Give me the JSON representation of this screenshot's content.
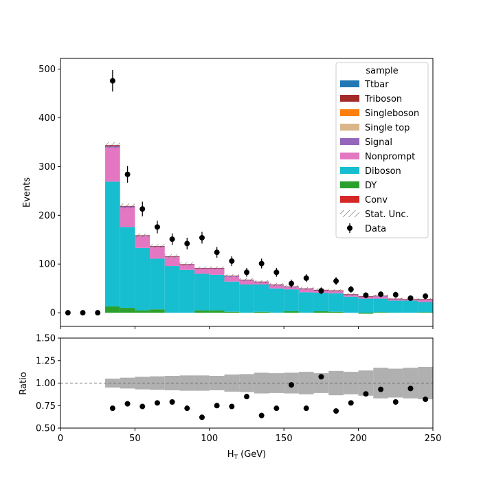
{
  "chart_data": [
    {
      "type": "bar",
      "stacked": true,
      "ylabel": "Events",
      "xlim": [
        0,
        250
      ],
      "ylim": [
        -28,
        522
      ],
      "yticks": [
        0,
        100,
        200,
        300,
        400,
        500
      ],
      "xticks": [
        0,
        50,
        100,
        150,
        200,
        250
      ],
      "grid": false,
      "legend_position": "top-right",
      "legend_title": "sample",
      "bin_edges": [
        0,
        10,
        20,
        30,
        40,
        50,
        60,
        70,
        80,
        90,
        100,
        110,
        120,
        130,
        140,
        150,
        160,
        170,
        180,
        190,
        200,
        210,
        220,
        230,
        240,
        250
      ],
      "series": [
        {
          "name": "Conv",
          "color": "#d62728",
          "values": [
            0,
            0,
            0,
            0,
            0,
            0,
            0,
            0,
            0,
            0,
            0,
            0,
            0,
            0,
            0,
            0,
            0,
            0,
            0,
            0,
            0,
            0,
            0,
            0,
            0
          ]
        },
        {
          "name": "DY",
          "color": "#2ca02c",
          "values": [
            0,
            0,
            0,
            13,
            10,
            5,
            7,
            0,
            0,
            5,
            5,
            2,
            0,
            2,
            0,
            3,
            0,
            3,
            2,
            0,
            -2,
            1,
            0,
            0,
            1
          ]
        },
        {
          "name": "Diboson",
          "color": "#17becf",
          "values": [
            0,
            0,
            0,
            256,
            166,
            128,
            104,
            96,
            88,
            75,
            73,
            62,
            58,
            56,
            50,
            45,
            42,
            38,
            38,
            33,
            29,
            28,
            25,
            25,
            21
          ]
        },
        {
          "name": "Nonprompt",
          "color": "#e377c2",
          "values": [
            0,
            0,
            0,
            70,
            40,
            24,
            24,
            18,
            10,
            10,
            12,
            10,
            8,
            4,
            6,
            4,
            6,
            4,
            4,
            3,
            3,
            4,
            2,
            2,
            4
          ]
        },
        {
          "name": "Signal",
          "color": "#9467bd",
          "values": [
            0,
            0,
            0,
            3,
            2,
            1,
            1,
            1,
            1,
            1,
            1,
            1,
            1,
            1,
            1,
            1,
            1,
            1,
            1,
            1,
            1,
            1,
            1,
            0,
            1
          ]
        },
        {
          "name": "Single top",
          "color": "#dbb68a",
          "values": [
            0,
            0,
            0,
            0,
            0,
            0,
            0,
            0,
            0,
            0,
            0,
            0,
            0,
            0,
            0,
            0,
            0,
            0,
            0,
            0,
            0,
            0,
            0,
            0,
            0
          ]
        },
        {
          "name": "Singleboson",
          "color": "#ff7f0e",
          "values": [
            0,
            0,
            0,
            0,
            0,
            0,
            0,
            0,
            0,
            0,
            0,
            0,
            0,
            0,
            0,
            0,
            0,
            0,
            0,
            0,
            0,
            0,
            0,
            0,
            0
          ]
        },
        {
          "name": "Triboson",
          "color": "#a52a2a",
          "values": [
            0,
            0,
            0,
            2,
            1,
            1,
            1,
            1,
            1,
            1,
            1,
            1,
            1,
            1,
            1,
            1,
            1,
            1,
            1,
            1,
            1,
            1,
            1,
            1,
            1
          ]
        },
        {
          "name": "Ttbar",
          "color": "#1f77b4",
          "values": [
            0,
            0,
            0,
            0,
            0,
            0,
            0,
            0,
            0,
            0,
            0,
            0,
            0,
            0,
            0,
            0,
            0,
            0,
            0,
            0,
            0,
            0,
            0,
            0,
            0
          ]
        }
      ],
      "stat_unc": [
        0,
        0,
        0,
        6,
        5,
        4,
        4,
        4,
        4,
        3,
        3,
        3,
        3,
        3,
        3,
        3,
        3,
        3,
        3,
        3,
        2,
        2,
        2,
        2,
        2
      ],
      "stat_unc_label": "Stat. Unc.",
      "data": {
        "name": "Data",
        "x": [
          5,
          15,
          25,
          35,
          45,
          55,
          65,
          75,
          85,
          95,
          105,
          115,
          125,
          135,
          145,
          155,
          165,
          175,
          185,
          195,
          205,
          215,
          225,
          235,
          245
        ],
        "y": [
          0,
          0,
          0,
          476,
          284,
          213,
          176,
          151,
          142,
          154,
          124,
          106,
          83,
          101,
          83,
          60,
          71,
          45,
          65,
          48,
          36,
          38,
          37,
          30,
          34
        ],
        "err": [
          0,
          0,
          0,
          22,
          17,
          15,
          13,
          12,
          12,
          12,
          11,
          10,
          9,
          10,
          9,
          8,
          8,
          7,
          8,
          7,
          6,
          6,
          6,
          5,
          6
        ]
      }
    },
    {
      "type": "scatter",
      "xlabel": "H_T (GeV)",
      "ylabel": "Ratio",
      "xlim": [
        0,
        250
      ],
      "ylim": [
        0.5,
        1.5
      ],
      "yticks": [
        0.5,
        0.75,
        1.0,
        1.25,
        1.5
      ],
      "xticks": [
        0,
        50,
        100,
        150,
        200,
        250
      ],
      "reference_line": 1.0,
      "band_edges": [
        30,
        40,
        50,
        60,
        70,
        80,
        90,
        100,
        110,
        120,
        130,
        140,
        150,
        160,
        170,
        180,
        190,
        200,
        210,
        220,
        230,
        240,
        250
      ],
      "band_halfwidth": [
        0.05,
        0.06,
        0.07,
        0.075,
        0.08,
        0.085,
        0.085,
        0.08,
        0.095,
        0.1,
        0.115,
        0.11,
        0.115,
        0.125,
        0.11,
        0.135,
        0.125,
        0.14,
        0.17,
        0.16,
        0.17,
        0.18,
        0.16
      ],
      "x": [
        35,
        45,
        55,
        65,
        75,
        85,
        95,
        105,
        115,
        125,
        135,
        145,
        155,
        165,
        175,
        185,
        195,
        205,
        215,
        225,
        235,
        245
      ],
      "y": [
        0.72,
        0.77,
        0.74,
        0.78,
        0.79,
        0.72,
        0.62,
        0.75,
        0.74,
        0.85,
        0.64,
        0.72,
        0.98,
        0.72,
        1.07,
        0.69,
        0.78,
        0.88,
        0.93,
        0.79,
        0.94,
        0.82
      ]
    }
  ],
  "axis_tick_labels": {
    "main_y": [
      "0",
      "100",
      "200",
      "300",
      "400",
      "500"
    ],
    "ratio_y": [
      "0.50",
      "0.75",
      "1.00",
      "1.25",
      "1.50"
    ],
    "x": [
      "0",
      "50",
      "100",
      "150",
      "200",
      "250"
    ]
  },
  "xlabel_main": "H",
  "xlabel_sub": "T",
  "xlabel_unit": " (GeV)"
}
